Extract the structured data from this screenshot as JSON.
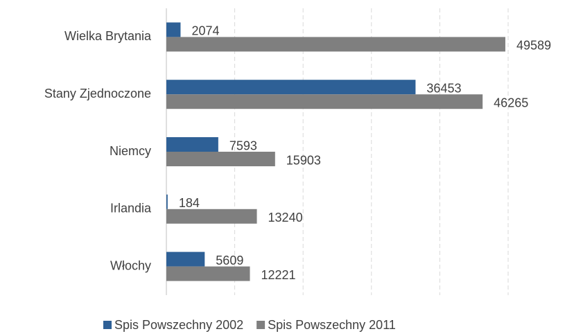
{
  "chart_data": {
    "type": "barh",
    "categories": [
      "Wielka Brytania",
      "Stany Zjednoczone",
      "Niemcy",
      "Irlandia",
      "Włochy"
    ],
    "series": [
      {
        "name": "Spis Powszechny 2002",
        "color": "#2e6096",
        "values": [
          2074,
          36453,
          7593,
          184,
          5609
        ]
      },
      {
        "name": "Spis Powszechny 2011",
        "color": "#7f7f7f",
        "values": [
          49589,
          46265,
          15903,
          13240,
          12221
        ]
      }
    ],
    "xlim": [
      0,
      50000
    ],
    "xticks": [
      0,
      10000,
      20000,
      30000,
      40000,
      50000
    ],
    "grid": true,
    "legend": "bottom"
  }
}
